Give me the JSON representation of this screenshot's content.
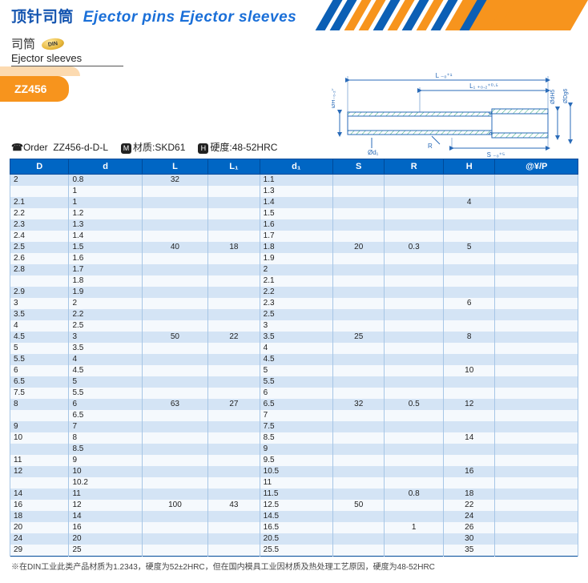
{
  "header": {
    "title_cn": "顶针司筒",
    "title_en": "Ejector pins Ejector sleeves",
    "stripe_colors": [
      "#0b5fb5",
      "#0b5fb5",
      "#f7941d",
      "#f7941d",
      "#0b5fb5",
      "#f7941d",
      "#0b5fb5",
      "#f7941d",
      "#0b5fb5",
      "#f7941d",
      "#0b5fb5",
      "#f7941d",
      "#f7941d"
    ],
    "stripe_bg": "#f7941d"
  },
  "subtitle": {
    "cn": "司筒",
    "badge": "DIN",
    "en": "Ejector sleeves"
  },
  "product": {
    "code": "ZZ456"
  },
  "diagram": {
    "labels": {
      "L": "L ₋₀⁺¹",
      "L1": "L₁ ₊₀.₂⁺⁰·⁵",
      "OH": "ØH₋₀.₂⁰",
      "Od1": "Ød₁",
      "R": "R",
      "S": "S ₋₀⁺⁵",
      "OdH5": "ØdH5",
      "ODg6": "ØDg6"
    }
  },
  "order": {
    "phone_icon": "☎",
    "label": "Order",
    "pattern": "ZZ456-d-D-L",
    "material_label": "材质:",
    "material": "SKD61",
    "hardness_label": "硬度:",
    "hardness": "48-52HRC"
  },
  "table": {
    "headers": [
      "D",
      "d",
      "L",
      "L₁",
      "d₁",
      "S",
      "R",
      "H",
      "@¥/P"
    ],
    "rows": [
      {
        "D": "2",
        "d": "0.8",
        "L": "32",
        "L1": "",
        "d1": "1.1",
        "S": "",
        "R": "",
        "H": "",
        "span": {
          "L": 2,
          "H": 6
        },
        "alt": true
      },
      {
        "D": "",
        "d": "1",
        "d1": "1.3",
        "alt": false
      },
      {
        "D": "2.1",
        "d": "1",
        "L": "",
        "d1": "1.4",
        "alt": true,
        "H": "4"
      },
      {
        "D": "2.2",
        "d": "1.2",
        "d1": "1.5",
        "alt": false,
        "Hsuppr": true
      },
      {
        "D": "2.3",
        "d": "1.3",
        "d1": "1.6",
        "alt": true
      },
      {
        "D": "2.4",
        "d": "1.4",
        "d1": "1.7",
        "alt": false
      },
      {
        "D": "2.5",
        "d": "1.5",
        "L": "40",
        "L1": "18",
        "d1": "1.8",
        "S": "20",
        "R": "0.3",
        "alt": true,
        "span": {
          "L": 8,
          "L1": 8,
          "S": 8,
          "R": 8
        },
        "H": "5"
      },
      {
        "D": "2.6",
        "d": "1.6",
        "d1": "1.9",
        "alt": false
      },
      {
        "D": "2.8",
        "d": "1.7",
        "d1": "2",
        "alt": true
      },
      {
        "D": "",
        "d": "1.8",
        "d1": "2.1",
        "alt": false
      },
      {
        "D": "2.9",
        "d": "1.9",
        "d1": "2.2",
        "alt": true
      },
      {
        "D": "3",
        "d": "2",
        "d1": "2.3",
        "alt": false,
        "H": "6"
      },
      {
        "D": "3.5",
        "d": "2.2",
        "d1": "2.5",
        "alt": true
      },
      {
        "D": "4",
        "d": "2.5",
        "d1": "3",
        "alt": false
      },
      {
        "D": "4.5",
        "d": "3",
        "L": "50",
        "L1": "22",
        "d1": "3.5",
        "S": "25",
        "alt": true,
        "span": {
          "L": 6,
          "L1": 6,
          "S": 6
        },
        "H": "8"
      },
      {
        "D": "5",
        "d": "3.5",
        "d1": "4",
        "alt": false
      },
      {
        "D": "5.5",
        "d": "4",
        "d1": "4.5",
        "alt": true
      },
      {
        "D": "6",
        "d": "4.5",
        "d1": "5",
        "alt": false,
        "H": "10"
      },
      {
        "D": "6.5",
        "d": "5",
        "d1": "5.5",
        "alt": true
      },
      {
        "D": "7.5",
        "d": "5.5",
        "d1": "6",
        "alt": false
      },
      {
        "D": "8",
        "d": "6",
        "L": "63",
        "L1": "27",
        "d1": "6.5",
        "S": "32",
        "R": "0.5",
        "alt": true,
        "span": {
          "L": 9,
          "L1": 9,
          "S": 9,
          "R": 9
        },
        "H": "12"
      },
      {
        "D": "",
        "d": "6.5",
        "d1": "7",
        "alt": false
      },
      {
        "D": "9",
        "d": "7",
        "d1": "7.5",
        "alt": true
      },
      {
        "D": "10",
        "d": "8",
        "d1": "8.5",
        "alt": false,
        "H": "14"
      },
      {
        "D": "",
        "d": "8.5",
        "d1": "9",
        "alt": true
      },
      {
        "D": "11",
        "d": "9",
        "d1": "9.5",
        "alt": false
      },
      {
        "D": "12",
        "d": "10",
        "d1": "10.5",
        "alt": true,
        "H": "16"
      },
      {
        "D": "",
        "d": "10.2",
        "d1": "11",
        "alt": false
      },
      {
        "D": "14",
        "d": "11",
        "d1": "11.5",
        "R": "0.8",
        "alt": true,
        "span": {
          "R": 2
        },
        "H": "18"
      },
      {
        "D": "16",
        "d": "12",
        "L": "100",
        "L1": "43",
        "d1": "12.5",
        "S": "50",
        "alt": false,
        "span": {
          "L": 5,
          "L1": 5,
          "S": 5
        },
        "H": "22"
      },
      {
        "D": "18",
        "d": "14",
        "d1": "14.5",
        "alt": true,
        "H": "24"
      },
      {
        "D": "20",
        "d": "16",
        "d1": "16.5",
        "R": "1",
        "alt": false,
        "span": {
          "R": 3
        },
        "H": "26"
      },
      {
        "D": "24",
        "d": "20",
        "d1": "20.5",
        "alt": true,
        "H": "30"
      },
      {
        "D": "29",
        "d": "25",
        "d1": "25.5",
        "alt": false,
        "H": "35"
      }
    ]
  },
  "footnote": "※在DIN工业此类产品材质为1.2343，硬度为52±2HRC，但在国内模具工业因材质及热处理工艺原因，硬度为48-52HRC"
}
